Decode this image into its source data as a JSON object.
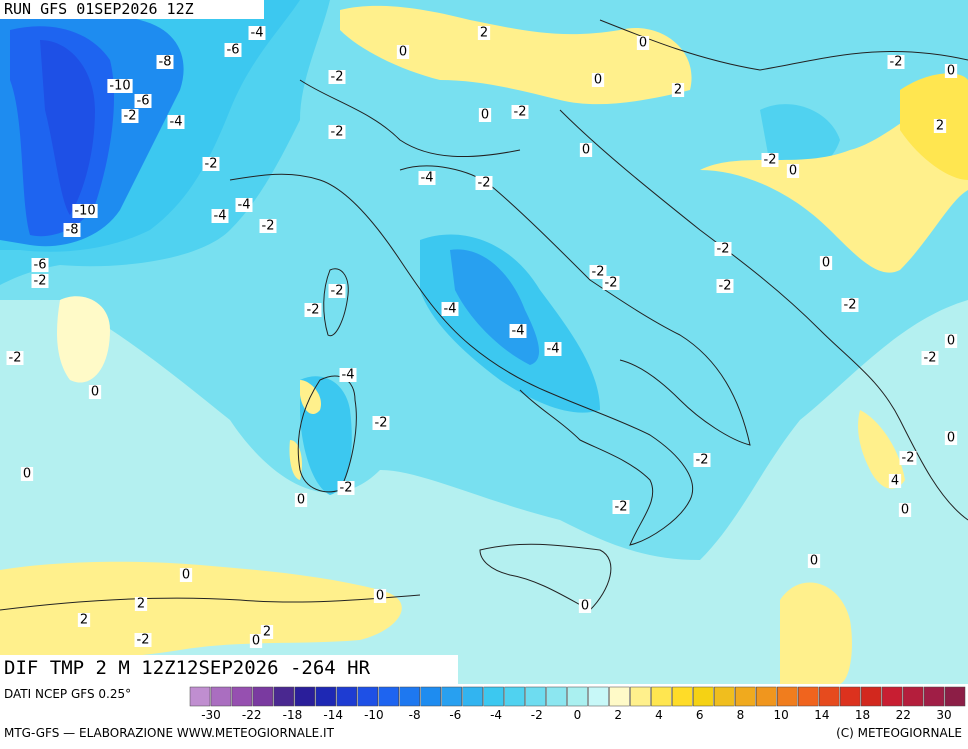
{
  "header": {
    "run": "RUN GFS 01SEP2026 12Z",
    "field": "DIF TMP 2 M 12Z12SEP2026 -264 HR",
    "source": "DATI NCEP GFS 0.25°"
  },
  "footer": {
    "left": "MTG-GFS — ELABORAZIONE WWW.METEOGIORNALE.IT",
    "right": "(C) METEOGIORNALE"
  },
  "colorbar": {
    "colors": [
      "#c08ed0",
      "#aa6ec0",
      "#9650b0",
      "#7a3aa0",
      "#4a2890",
      "#2a1e9a",
      "#1e28b4",
      "#1e3cd2",
      "#1e50e6",
      "#1e64f0",
      "#1e78f0",
      "#1e8cf0",
      "#28a0f0",
      "#32b4f0",
      "#3cc8f0",
      "#50d2f0",
      "#6edcf0",
      "#8ce6f0",
      "#aaf0f0",
      "#c8f8f8",
      "#fffac8",
      "#fff08c",
      "#ffe650",
      "#ffdc28",
      "#f5d214",
      "#f0be1e",
      "#f0aa1e",
      "#f0961e",
      "#f07d1e",
      "#f0641e",
      "#e64b1e",
      "#dc321e",
      "#d2281e",
      "#c81e32",
      "#b41e3c",
      "#a01e46",
      "#8c1e46"
    ],
    "ticks": [
      -30,
      -22,
      -18,
      -14,
      -10,
      -8,
      -6,
      -4,
      -2,
      0,
      2,
      4,
      6,
      8,
      10,
      14,
      18,
      22,
      30
    ]
  },
  "contour_labels": [
    -4,
    -6,
    -8,
    -10,
    -6,
    -2,
    -4,
    -2,
    -10,
    -8,
    -6,
    -2,
    -2,
    0,
    0,
    0,
    2,
    0,
    0,
    2,
    -2,
    -2,
    -2,
    0,
    0,
    -2,
    0,
    2,
    -2,
    0,
    -4,
    -2,
    -4,
    -4,
    -2,
    -2,
    0,
    -2,
    -2,
    -2,
    -2,
    -2,
    -2,
    -4,
    -4,
    -4,
    -2,
    0,
    -4,
    -2,
    0,
    -2,
    -2,
    4,
    0,
    -2,
    0,
    -2,
    0,
    0,
    0,
    2,
    0,
    2,
    -2,
    0,
    2
  ]
}
